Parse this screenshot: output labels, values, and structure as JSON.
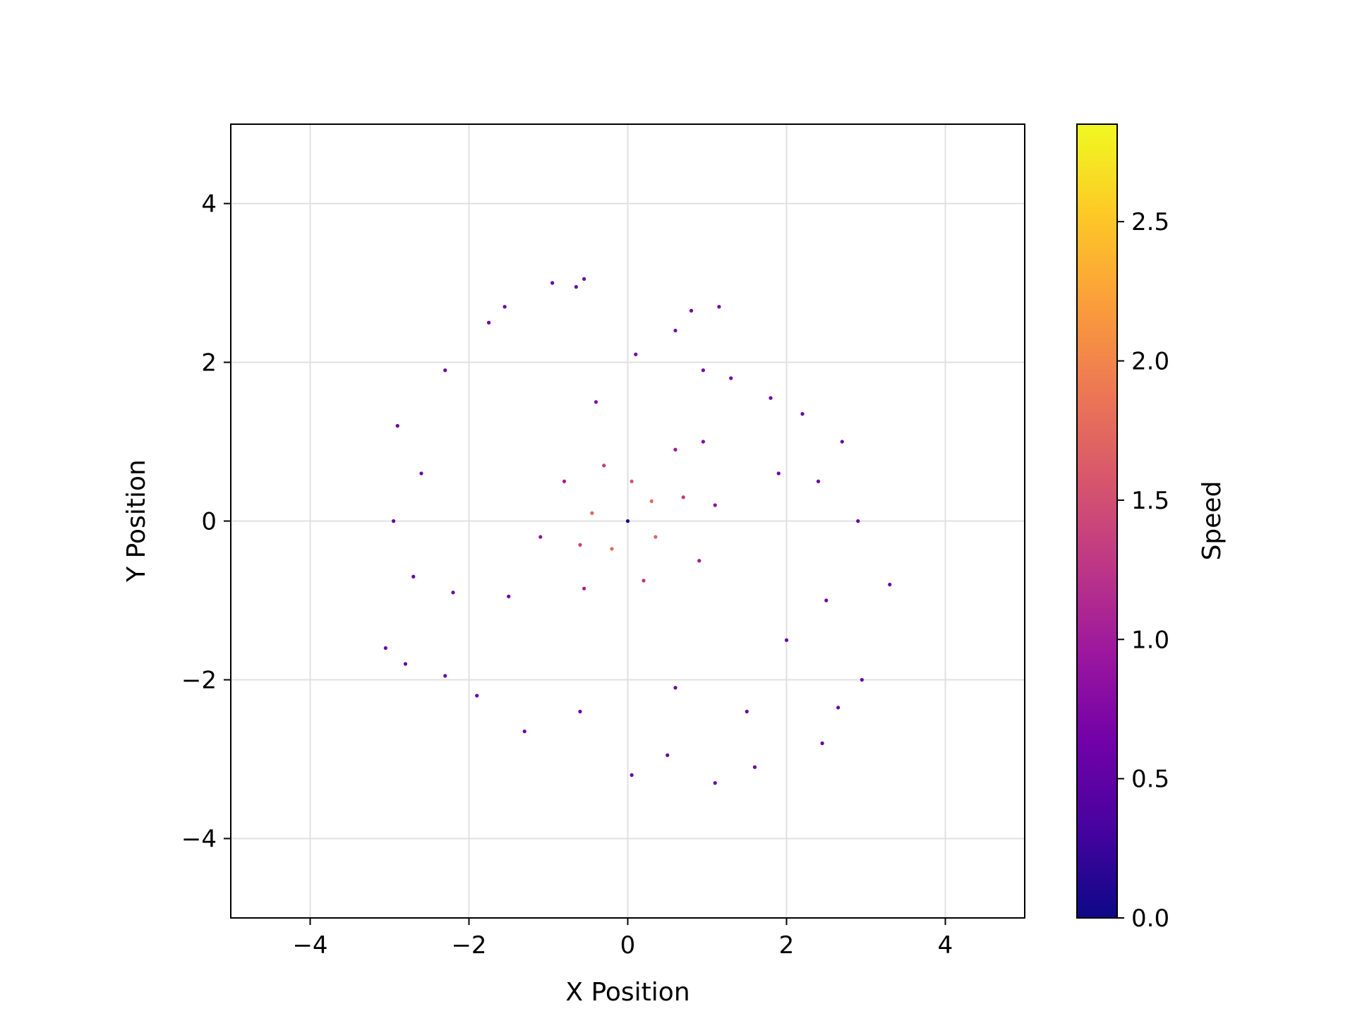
{
  "chart_data": {
    "type": "scatter",
    "title": "",
    "xlabel": "X Position",
    "ylabel": "Y Position",
    "xlim": [
      -5,
      5
    ],
    "ylim": [
      -5,
      5
    ],
    "xticks": [
      -4,
      -2,
      0,
      2,
      4
    ],
    "yticks": [
      -4,
      -2,
      0,
      2,
      4
    ],
    "xtick_labels": [
      "−4",
      "−2",
      "0",
      "2",
      "4"
    ],
    "ytick_labels": [
      "−4",
      "−2",
      "0",
      "2",
      "4"
    ],
    "grid": true,
    "colormap": "plasma",
    "colorbar": {
      "label": "Speed",
      "range": [
        0.0,
        2.85
      ],
      "ticks": [
        0.0,
        0.5,
        1.0,
        1.5,
        2.0,
        2.5
      ],
      "tick_labels": [
        "0.0",
        "0.5",
        "1.0",
        "1.5",
        "2.0",
        "2.5"
      ]
    },
    "colors": {
      "plasma_stops": [
        "#0d0887",
        "#46039f",
        "#7201a8",
        "#9c179e",
        "#bd3786",
        "#d8576b",
        "#ed7953",
        "#fb9f3a",
        "#fdca26",
        "#f0f921"
      ],
      "grid": "#e0e0e0",
      "axes": "#000000"
    },
    "series": [
      {
        "values": [
          {
            "x": 0.0,
            "y": 0.0,
            "speed": 0.05
          },
          {
            "x": -0.45,
            "y": 0.1,
            "speed": 1.7
          },
          {
            "x": 0.3,
            "y": 0.25,
            "speed": 1.75
          },
          {
            "x": -0.2,
            "y": -0.35,
            "speed": 1.75
          },
          {
            "x": 0.35,
            "y": -0.2,
            "speed": 1.7
          },
          {
            "x": 0.05,
            "y": 0.5,
            "speed": 1.55
          },
          {
            "x": -0.6,
            "y": -0.3,
            "speed": 1.4
          },
          {
            "x": 0.7,
            "y": 0.3,
            "speed": 1.3
          },
          {
            "x": -0.3,
            "y": 0.7,
            "speed": 1.3
          },
          {
            "x": 0.2,
            "y": -0.75,
            "speed": 1.25
          },
          {
            "x": -0.8,
            "y": 0.5,
            "speed": 1.0
          },
          {
            "x": 0.9,
            "y": -0.5,
            "speed": 1.0
          },
          {
            "x": -0.55,
            "y": -0.85,
            "speed": 1.0
          },
          {
            "x": 0.6,
            "y": 0.9,
            "speed": 0.95
          },
          {
            "x": -1.1,
            "y": -0.2,
            "speed": 0.85
          },
          {
            "x": 1.1,
            "y": 0.2,
            "speed": 0.85
          },
          {
            "x": -0.4,
            "y": 1.5,
            "speed": 0.75
          },
          {
            "x": 0.1,
            "y": 2.1,
            "speed": 0.7
          },
          {
            "x": 0.6,
            "y": 2.4,
            "speed": 0.65
          },
          {
            "x": 0.8,
            "y": 2.65,
            "speed": 0.6
          },
          {
            "x": 1.15,
            "y": 2.7,
            "speed": 0.6
          },
          {
            "x": -0.65,
            "y": 2.95,
            "speed": 0.55
          },
          {
            "x": -0.55,
            "y": 3.05,
            "speed": 0.55
          },
          {
            "x": -0.95,
            "y": 3.0,
            "speed": 0.55
          },
          {
            "x": -1.55,
            "y": 2.7,
            "speed": 0.55
          },
          {
            "x": -1.75,
            "y": 2.5,
            "speed": 0.6
          },
          {
            "x": -2.3,
            "y": 1.9,
            "speed": 0.6
          },
          {
            "x": -2.6,
            "y": 0.6,
            "speed": 0.6
          },
          {
            "x": -2.9,
            "y": 1.2,
            "speed": 0.55
          },
          {
            "x": -2.95,
            "y": 0.0,
            "speed": 0.55
          },
          {
            "x": -2.7,
            "y": -0.7,
            "speed": 0.55
          },
          {
            "x": -2.2,
            "y": -0.9,
            "speed": 0.6
          },
          {
            "x": -1.5,
            "y": -0.95,
            "speed": 0.6
          },
          {
            "x": -3.05,
            "y": -1.6,
            "speed": 0.55
          },
          {
            "x": -2.8,
            "y": -1.8,
            "speed": 0.55
          },
          {
            "x": -2.3,
            "y": -1.95,
            "speed": 0.55
          },
          {
            "x": -1.9,
            "y": -2.2,
            "speed": 0.55
          },
          {
            "x": -1.3,
            "y": -2.65,
            "speed": 0.55
          },
          {
            "x": -0.6,
            "y": -2.4,
            "speed": 0.6
          },
          {
            "x": 0.05,
            "y": -3.2,
            "speed": 0.55
          },
          {
            "x": 0.5,
            "y": -2.95,
            "speed": 0.55
          },
          {
            "x": 0.6,
            "y": -2.1,
            "speed": 0.6
          },
          {
            "x": 1.1,
            "y": -3.3,
            "speed": 0.55
          },
          {
            "x": 1.6,
            "y": -3.1,
            "speed": 0.55
          },
          {
            "x": 1.5,
            "y": -2.4,
            "speed": 0.6
          },
          {
            "x": 2.0,
            "y": -1.5,
            "speed": 0.6
          },
          {
            "x": 2.45,
            "y": -2.8,
            "speed": 0.55
          },
          {
            "x": 2.65,
            "y": -2.35,
            "speed": 0.55
          },
          {
            "x": 2.95,
            "y": -2.0,
            "speed": 0.55
          },
          {
            "x": 2.5,
            "y": -1.0,
            "speed": 0.6
          },
          {
            "x": 3.3,
            "y": -0.8,
            "speed": 0.55
          },
          {
            "x": 2.9,
            "y": 0.0,
            "speed": 0.55
          },
          {
            "x": 2.4,
            "y": 0.5,
            "speed": 0.6
          },
          {
            "x": 1.9,
            "y": 0.6,
            "speed": 0.6
          },
          {
            "x": 2.7,
            "y": 1.0,
            "speed": 0.55
          },
          {
            "x": 2.2,
            "y": 1.35,
            "speed": 0.55
          },
          {
            "x": 1.8,
            "y": 1.55,
            "speed": 0.6
          },
          {
            "x": 1.3,
            "y": 1.8,
            "speed": 0.6
          },
          {
            "x": 0.95,
            "y": 1.9,
            "speed": 0.65
          },
          {
            "x": 0.95,
            "y": 1.0,
            "speed": 0.75
          }
        ]
      }
    ]
  }
}
